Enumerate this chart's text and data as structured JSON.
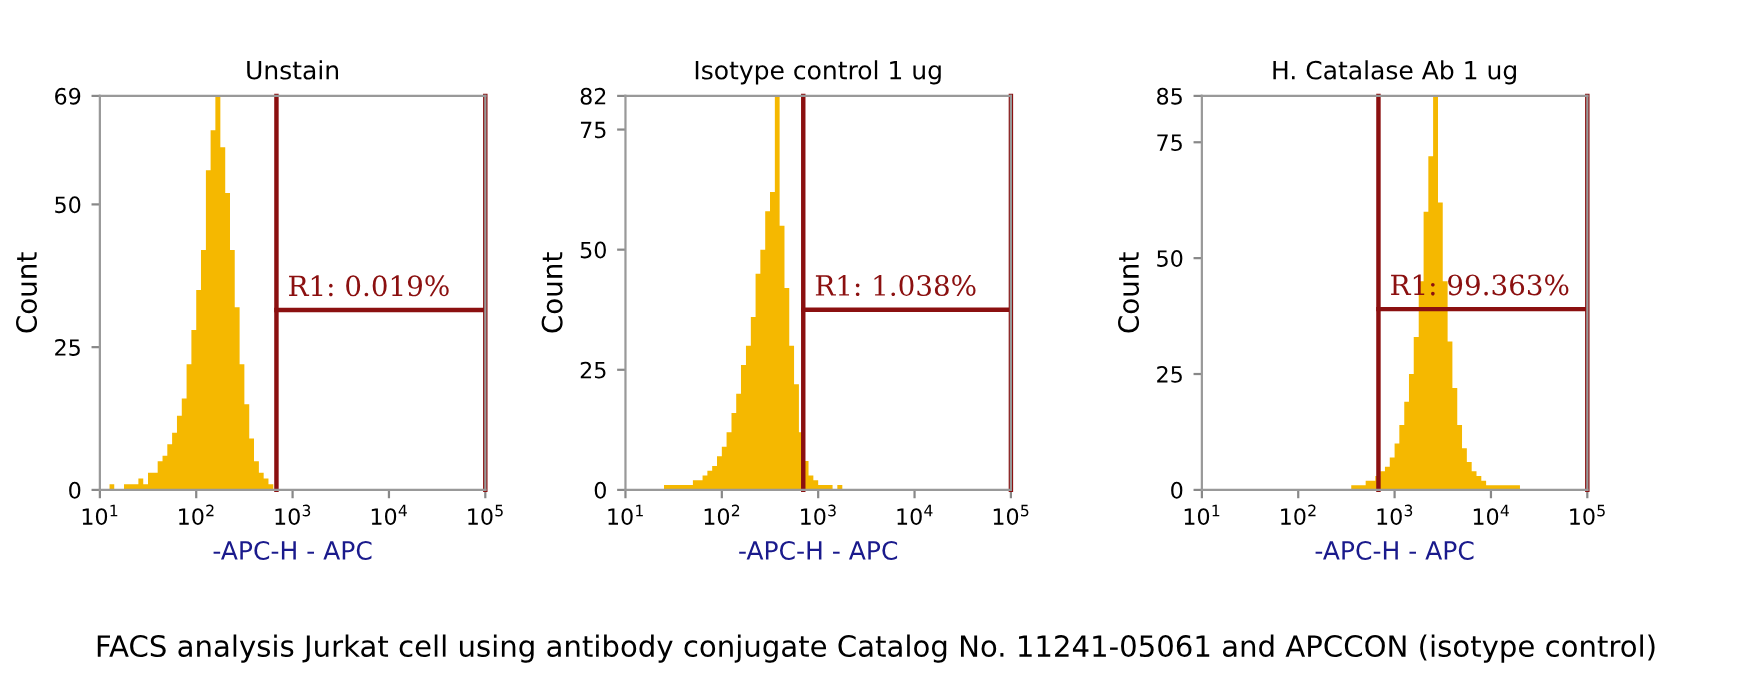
{
  "chart_data": [
    {
      "type": "histogram",
      "title": "Unstain",
      "xlabel": "-APC-H - APC",
      "ylabel": "Count",
      "log": "x",
      "color": "#f5b800",
      "bins": [
        10,
        11.2,
        12.6,
        14.1,
        15.8,
        17.8,
        20,
        22.4,
        25.1,
        28.2,
        31.6,
        35.5,
        39.8,
        44.7,
        50.1,
        56.2,
        63.1,
        70.8,
        79.4,
        89.1,
        100,
        112,
        126,
        141,
        158,
        178,
        200,
        224,
        251,
        282,
        316,
        355,
        398,
        447,
        501,
        562,
        631,
        708,
        794,
        891,
        1000
      ],
      "values": [
        0,
        0,
        1,
        0,
        0,
        1,
        1,
        1,
        2,
        1,
        3,
        3,
        5,
        6,
        8,
        10,
        13,
        16,
        22,
        28,
        35,
        42,
        56,
        63,
        69,
        60,
        52,
        42,
        32,
        22,
        15,
        9,
        5,
        3,
        2,
        1,
        0,
        0,
        0,
        0
      ],
      "xlim": [
        10,
        100000
      ],
      "xticks": [
        {
          "value": 10,
          "label": "10$^{1}$"
        },
        {
          "value": 100,
          "label": "10$^{2}$"
        },
        {
          "value": 1000,
          "label": "10$^{3}$"
        },
        {
          "value": 10000,
          "label": "10$^{4}$"
        },
        {
          "value": 100000,
          "label": "10$^{5}$"
        }
      ],
      "ylim": [
        0,
        69
      ],
      "yticks": [
        0,
        25,
        50,
        69
      ],
      "ref_lines": [
        {
          "axis": "x",
          "value": 680,
          "color": "#8b1010"
        },
        {
          "axis": "x",
          "value": 100000,
          "color": "#8b1010"
        }
      ],
      "series": [
        {
          "type": "line",
          "x": [
            680,
            100000
          ],
          "values": [
            31.5,
            31.5
          ],
          "color": "#8b1010"
        }
      ],
      "annotations": [
        "R1: 0.019%",
        "FACS analysis Jurkat cell using antibody conjugate Catalog No. 11241-05061 and APCCON (isotype control)"
      ]
    },
    {
      "type": "histogram",
      "title": "Isotype control 1 ug",
      "xlabel": "-APC-H - APC",
      "ylabel": "Count",
      "log": "x",
      "color": "#f5b800",
      "bins": [
        25.1,
        28.2,
        31.6,
        35.5,
        39.8,
        44.7,
        50.1,
        56.2,
        63.1,
        70.8,
        79.4,
        89.1,
        100,
        112,
        126,
        141,
        158,
        178,
        200,
        224,
        251,
        282,
        316,
        355,
        398,
        447,
        501,
        562,
        631,
        708,
        794,
        891,
        1000,
        1120,
        1260,
        1410,
        1580,
        1780,
        2000
      ],
      "values": [
        1,
        1,
        1,
        1,
        1,
        1,
        2,
        2,
        3,
        4,
        5,
        7,
        9,
        12,
        16,
        20,
        26,
        30,
        36,
        45,
        50,
        58,
        62,
        82,
        55,
        42,
        30,
        22,
        12,
        6,
        3,
        2,
        1,
        1,
        1,
        0,
        1,
        0
      ],
      "xlim": [
        10,
        100000
      ],
      "xticks": [
        {
          "value": 10,
          "label": "10$^{1}$"
        },
        {
          "value": 100,
          "label": "10$^{2}$"
        },
        {
          "value": 1000,
          "label": "10$^{3}$"
        },
        {
          "value": 10000,
          "label": "10$^{4}$"
        },
        {
          "value": 100000,
          "label": "10$^{5}$"
        }
      ],
      "ylim": [
        0,
        82
      ],
      "yticks": [
        0,
        25,
        50,
        75,
        82
      ],
      "ref_lines": [
        {
          "axis": "x",
          "value": 700,
          "color": "#8b1010"
        },
        {
          "axis": "x",
          "value": 100000,
          "color": "#8b1010"
        }
      ],
      "series": [
        {
          "type": "line",
          "x": [
            700,
            100000
          ],
          "values": [
            37.5,
            37.5
          ],
          "color": "#8b1010"
        }
      ],
      "annotations": [
        "R1: 1.038%"
      ]
    },
    {
      "type": "histogram",
      "title": "H. Catalase Ab 1 ug",
      "xlabel": "-APC-H - APC",
      "ylabel": "Count",
      "log": "x",
      "color": "#f5b800",
      "bins": [
        316,
        355,
        398,
        447,
        501,
        562,
        631,
        708,
        794,
        891,
        1000,
        1120,
        1260,
        1410,
        1580,
        1780,
        2000,
        2240,
        2510,
        2820,
        3160,
        3550,
        3980,
        4470,
        5010,
        5620,
        6310,
        7080,
        7940,
        8910,
        10000,
        11200,
        12600,
        14100,
        15800,
        17800,
        20000,
        22400,
        25100
      ],
      "values": [
        0,
        1,
        1,
        1,
        2,
        2,
        3,
        4,
        5,
        7,
        10,
        14,
        19,
        25,
        33,
        45,
        60,
        72,
        85,
        62,
        45,
        32,
        22,
        14,
        9,
        6,
        4,
        3,
        2,
        1,
        1,
        1,
        1,
        1,
        1,
        1,
        0,
        0
      ],
      "xlim": [
        10,
        100000
      ],
      "xticks": [
        {
          "value": 10,
          "label": "10$^{1}$"
        },
        {
          "value": 100,
          "label": "10$^{2}$"
        },
        {
          "value": 1000,
          "label": "10$^{3}$"
        },
        {
          "value": 10000,
          "label": "10$^{4}$"
        },
        {
          "value": 100000,
          "label": "10$^{5}$"
        }
      ],
      "ylim": [
        0,
        85
      ],
      "yticks": [
        0,
        25,
        50,
        75,
        85
      ],
      "ref_lines": [
        {
          "axis": "x",
          "value": 680,
          "color": "#8b1010"
        },
        {
          "axis": "x",
          "value": 100000,
          "color": "#8b1010"
        }
      ],
      "series": [
        {
          "type": "line",
          "x": [
            680,
            100000
          ],
          "values": [
            39,
            39
          ],
          "color": "#8b1010"
        }
      ],
      "annotations": [
        "R1: 99.363%"
      ]
    }
  ]
}
